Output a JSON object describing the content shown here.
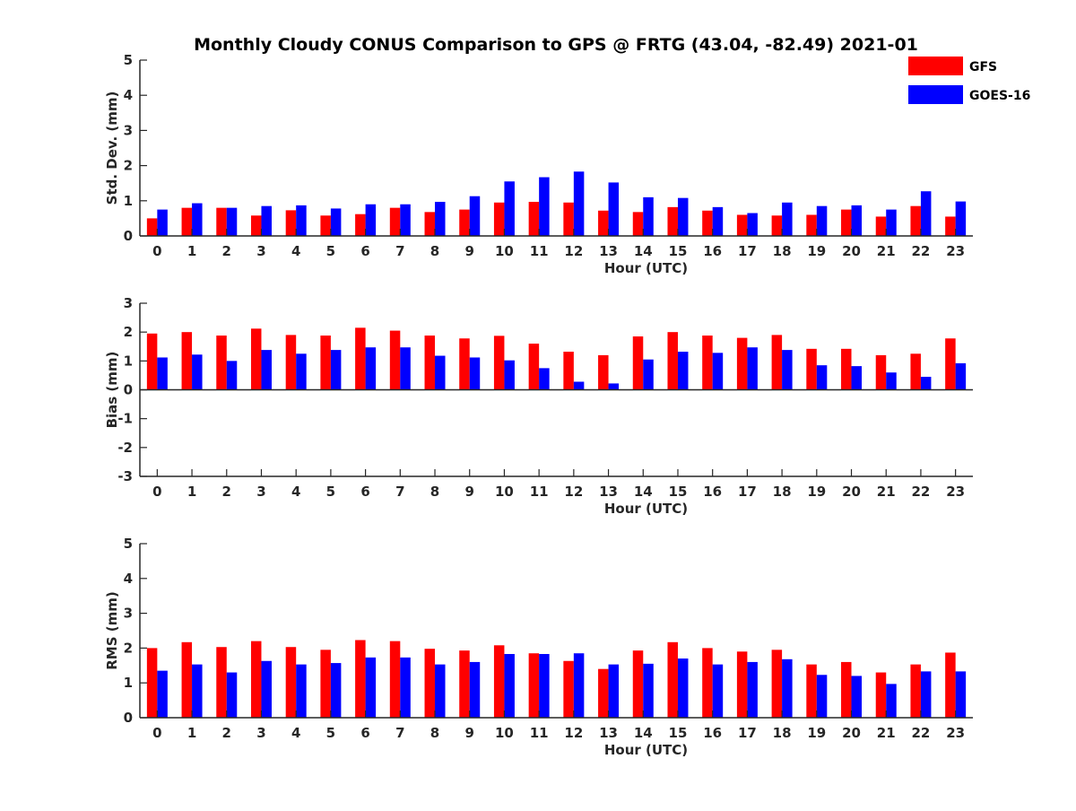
{
  "title": "Monthly Cloudy CONUS Comparison to GPS @ FRTG (43.04, -82.49) 2021-01",
  "legend": [
    {
      "name": "GFS",
      "color": "#ff0000"
    },
    {
      "name": "GOES-16",
      "color": "#0000ff"
    }
  ],
  "chart_data": [
    {
      "type": "bar",
      "xlabel": "Hour (UTC)",
      "ylabel": "Std. Dev. (mm)",
      "ylim": [
        0,
        5
      ],
      "yticks": [
        0,
        1,
        2,
        3,
        4,
        5
      ],
      "categories": [
        "0",
        "1",
        "2",
        "3",
        "4",
        "5",
        "6",
        "7",
        "8",
        "9",
        "10",
        "11",
        "12",
        "13",
        "14",
        "15",
        "16",
        "17",
        "18",
        "19",
        "20",
        "21",
        "22",
        "23"
      ],
      "series": [
        {
          "name": "GFS",
          "color": "#ff0000",
          "values": [
            0.5,
            0.8,
            0.8,
            0.58,
            0.73,
            0.58,
            0.62,
            0.8,
            0.68,
            0.75,
            0.95,
            0.97,
            0.95,
            0.72,
            0.68,
            0.82,
            0.72,
            0.6,
            0.58,
            0.6,
            0.75,
            0.55,
            0.85,
            0.55
          ]
        },
        {
          "name": "GOES-16",
          "color": "#0000ff",
          "values": [
            0.75,
            0.93,
            0.8,
            0.85,
            0.87,
            0.78,
            0.9,
            0.9,
            0.97,
            1.13,
            1.55,
            1.67,
            1.83,
            1.52,
            1.1,
            1.08,
            0.82,
            0.65,
            0.95,
            0.85,
            0.87,
            0.75,
            1.27,
            0.98
          ]
        }
      ]
    },
    {
      "type": "bar",
      "xlabel": "Hour (UTC)",
      "ylabel": "Bias (mm)",
      "ylim": [
        -3,
        3
      ],
      "yticks": [
        -3,
        -2,
        -1,
        0,
        1,
        2,
        3
      ],
      "categories": [
        "0",
        "1",
        "2",
        "3",
        "4",
        "5",
        "6",
        "7",
        "8",
        "9",
        "10",
        "11",
        "12",
        "13",
        "14",
        "15",
        "16",
        "17",
        "18",
        "19",
        "20",
        "21",
        "22",
        "23"
      ],
      "series": [
        {
          "name": "GFS",
          "color": "#ff0000",
          "values": [
            1.95,
            2.0,
            1.88,
            2.12,
            1.9,
            1.88,
            2.15,
            2.05,
            1.88,
            1.78,
            1.87,
            1.6,
            1.32,
            1.2,
            1.85,
            2.0,
            1.88,
            1.8,
            1.9,
            1.42,
            1.42,
            1.2,
            1.25,
            1.78
          ]
        },
        {
          "name": "GOES-16",
          "color": "#0000ff",
          "values": [
            1.12,
            1.22,
            1.0,
            1.38,
            1.25,
            1.38,
            1.47,
            1.47,
            1.18,
            1.12,
            1.02,
            0.75,
            0.28,
            0.22,
            1.05,
            1.32,
            1.28,
            1.47,
            1.38,
            0.85,
            0.82,
            0.6,
            0.45,
            0.92
          ]
        }
      ]
    },
    {
      "type": "bar",
      "xlabel": "Hour (UTC)",
      "ylabel": "RMS (mm)",
      "ylim": [
        0,
        5
      ],
      "yticks": [
        0,
        1,
        2,
        3,
        4,
        5
      ],
      "categories": [
        "0",
        "1",
        "2",
        "3",
        "4",
        "5",
        "6",
        "7",
        "8",
        "9",
        "10",
        "11",
        "12",
        "13",
        "14",
        "15",
        "16",
        "17",
        "18",
        "19",
        "20",
        "21",
        "22",
        "23"
      ],
      "series": [
        {
          "name": "GFS",
          "color": "#ff0000",
          "values": [
            2.0,
            2.17,
            2.03,
            2.2,
            2.03,
            1.95,
            2.23,
            2.2,
            1.98,
            1.93,
            2.08,
            1.85,
            1.63,
            1.4,
            1.93,
            2.17,
            2.0,
            1.9,
            1.95,
            1.53,
            1.6,
            1.3,
            1.53,
            1.87
          ]
        },
        {
          "name": "GOES-16",
          "color": "#0000ff",
          "values": [
            1.35,
            1.53,
            1.3,
            1.63,
            1.53,
            1.57,
            1.73,
            1.73,
            1.53,
            1.6,
            1.83,
            1.83,
            1.85,
            1.53,
            1.55,
            1.7,
            1.53,
            1.6,
            1.68,
            1.23,
            1.2,
            0.97,
            1.33,
            1.33
          ]
        }
      ]
    }
  ]
}
